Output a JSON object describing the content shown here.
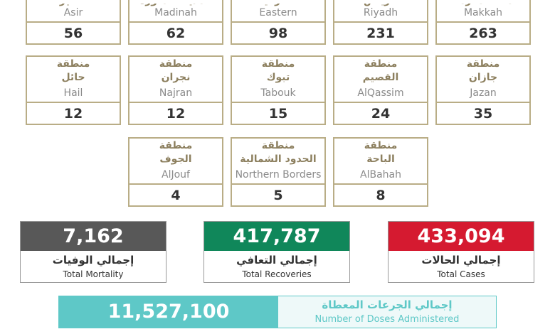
{
  "regions_top": [
    {
      "ar": "مكة المكرمة",
      "en": "Makkah",
      "value": "263"
    },
    {
      "ar": "الرياض",
      "en": "Riyadh",
      "value": "231"
    },
    {
      "ar": "الشرقية",
      "en": "Eastern",
      "value": "98"
    },
    {
      "ar": "المدينة المنورة",
      "en": "Madinah",
      "value": "62"
    },
    {
      "ar": "عسير",
      "en": "Asir",
      "value": "56"
    }
  ],
  "regions": [
    {
      "prefix": "منطقة",
      "ar": "جازان",
      "en": "Jazan",
      "value": "35"
    },
    {
      "prefix": "منطقة",
      "ar": "القصيم",
      "en": "AlQassim",
      "value": "24"
    },
    {
      "prefix": "منطقة",
      "ar": "تبوك",
      "en": "Tabouk",
      "value": "15"
    },
    {
      "prefix": "منطقة",
      "ar": "نجران",
      "en": "Najran",
      "value": "12"
    },
    {
      "prefix": "منطقة",
      "ar": "حائل",
      "en": "Hail",
      "value": "12"
    },
    {
      "prefix": "منطقة",
      "ar": "الباحة",
      "en": "AlBahah",
      "value": "8"
    },
    {
      "prefix": "منطقة",
      "ar": "الحدود الشمالية",
      "en": "Northern Borders",
      "value": "5"
    },
    {
      "prefix": "منطقة",
      "ar": "الجوف",
      "en": "AlJouf",
      "value": "4"
    }
  ],
  "totals": [
    {
      "value": "433,094",
      "ar": "إجمالي الحالات",
      "en": "Total Cases",
      "color": "#d51a30"
    },
    {
      "value": "417,787",
      "ar": "إجمالي التعافي",
      "en": "Total Recoveries",
      "color": "#10875a"
    },
    {
      "value": "7,162",
      "ar": "إجمالي الوفيات",
      "en": "Total Mortality",
      "color": "#585858"
    }
  ],
  "doses": {
    "value": "11,527,100",
    "ar": "إجمالي الجرعات المعطاة",
    "en": "Number of Doses Administered",
    "color": "#5ec8c7"
  }
}
